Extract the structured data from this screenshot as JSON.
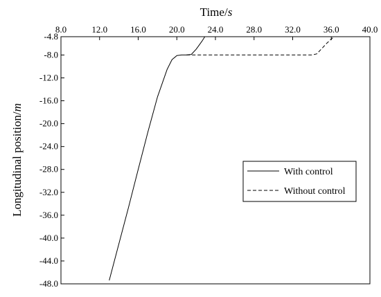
{
  "chart_data": {
    "type": "line",
    "title": "",
    "xlabel": "Time/",
    "xlabel_unit": "s",
    "ylabel": "Longitudinal position/",
    "ylabel_unit": "m",
    "xlim": [
      8.0,
      40.0
    ],
    "ylim": [
      -48.0,
      -4.8
    ],
    "x_ticks": [
      "8.0",
      "12.0",
      "16.0",
      "20.0",
      "24.0",
      "28.0",
      "32.0",
      "36.0",
      "40.0"
    ],
    "y_ticks": [
      "-4.8",
      "-8.0",
      "-12.0",
      "-16.0",
      "-20.0",
      "-24.0",
      "-28.0",
      "-32.0",
      "-36.0",
      "-40.0",
      "-44.0",
      "-48.0"
    ],
    "x_axis_position": "top",
    "grid": false,
    "legend_position": "right",
    "series": [
      {
        "name": "With control",
        "style": "solid",
        "color": "#000000",
        "x": [
          13.0,
          14.0,
          15.0,
          16.0,
          17.0,
          18.0,
          19.0,
          19.5,
          20.0,
          20.5,
          21.0,
          21.5,
          22.0,
          22.3,
          22.6,
          22.9
        ],
        "y": [
          -47.4,
          -41.0,
          -34.6,
          -28.0,
          -21.5,
          -15.3,
          -10.5,
          -8.8,
          -8.1,
          -8.0,
          -8.0,
          -7.9,
          -7.0,
          -6.3,
          -5.6,
          -4.8
        ]
      },
      {
        "name": "Without control",
        "style": "dashed",
        "color": "#000000",
        "x": [
          21.0,
          24.0,
          28.0,
          32.0,
          34.0,
          34.5,
          35.0,
          35.5,
          36.0,
          36.3
        ],
        "y": [
          -8.0,
          -8.0,
          -8.0,
          -8.0,
          -8.0,
          -7.8,
          -6.9,
          -6.0,
          -5.2,
          -4.8
        ]
      }
    ]
  }
}
